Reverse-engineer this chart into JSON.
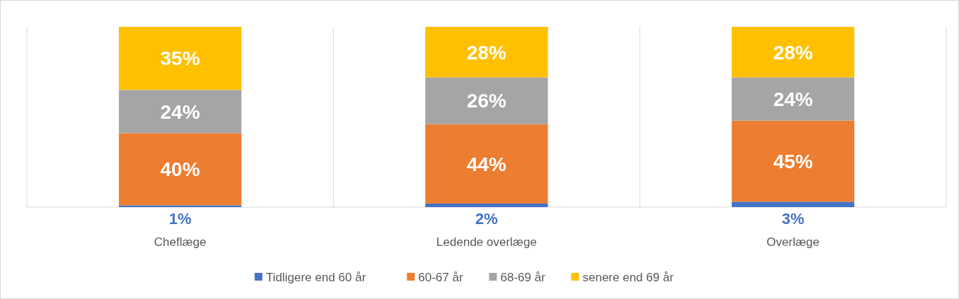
{
  "chart_data": {
    "type": "bar",
    "stacked": true,
    "categories": [
      "Cheflæge",
      "Ledende overlæge",
      "Overlæge"
    ],
    "series": [
      {
        "name": "Tidligere end 60 år",
        "color": "#4472c4",
        "values": [
          1,
          2,
          3
        ],
        "value_labels": [
          "1%",
          "2%",
          "3%"
        ]
      },
      {
        "name": "60-67 år",
        "color": "#ed7d31",
        "values": [
          40,
          44,
          45
        ],
        "value_labels": [
          "40%",
          "44%",
          "45%"
        ]
      },
      {
        "name": "68-69 år",
        "color": "#a5a5a5",
        "values": [
          24,
          26,
          24
        ],
        "value_labels": [
          "24%",
          "26%",
          "24%"
        ]
      },
      {
        "name": "senere end 69 år",
        "color": "#ffc000",
        "values": [
          35,
          28,
          28
        ],
        "value_labels": [
          "35%",
          "28%",
          "28%"
        ]
      }
    ],
    "tick_labels": "x",
    "grid": "x",
    "legend": "bottom"
  }
}
